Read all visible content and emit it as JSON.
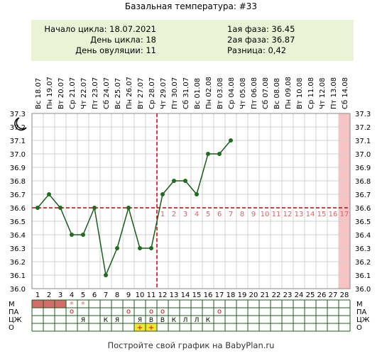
{
  "header": {
    "title": "Базальная температура: #33"
  },
  "info": {
    "cycle_start": "Начало цикла: 18.07.2021",
    "cycle_day": "День цикла: 18",
    "ovulation_day": "День овуляции: 11",
    "phase1": "1ая фаза: 36.45",
    "phase2": "2ая фаза: 36.87",
    "difference": "Разница: 0,42"
  },
  "footer": "Постройте свой график на BabyPlan.ru",
  "colors": {
    "line": "#1a5d1a",
    "point": "#1f6b1f",
    "coverline": "#cc0000",
    "phase2_numbers": "#e06060",
    "menstruation": "#d46a6a",
    "info_bg": "#eaf3d5",
    "last_day_bg": "#f7c3c3",
    "highlight_yellow": "#f4e534",
    "grid": "#d0d0d0"
  },
  "chart_data": {
    "type": "line",
    "days": [
      "1",
      "2",
      "3",
      "4",
      "5",
      "6",
      "7",
      "8",
      "9",
      "10",
      "11",
      "12",
      "13",
      "14",
      "15",
      "16",
      "17",
      "18",
      "19",
      "20",
      "21",
      "22",
      "23",
      "24",
      "25",
      "26",
      "27",
      "28"
    ],
    "dates": [
      "Вс 18.07",
      "Пн 19.07",
      "Вт 20.07",
      "Ср 21.07",
      "Чт 22.07",
      "Пт 23.07",
      "Сб 24.07",
      "Вс 25.07",
      "Пн 26.07",
      "Вт 27.07",
      "Ср 28.07",
      "Чт 29.07",
      "Пт 30.07",
      "Сб 31.07",
      "Вс 01.08",
      "Пн 02.08",
      "Вт 03.08",
      "Ср 04.08",
      "Чт 05.08",
      "Пт 06.08",
      "Сб 07.08",
      "Вс 08.08",
      "Пн 09.08",
      "Вт 10.08",
      "Ср 11.08",
      "Чт 12.08",
      "Пт 13.08",
      "Сб 14.08"
    ],
    "y_ticks": [
      "37.3",
      "37.2",
      "37.1",
      "37.0",
      "36.9",
      "36.8",
      "36.7",
      "36.6",
      "36.5",
      "36.4",
      "36.3",
      "36.2",
      "36.1",
      "36.0"
    ],
    "ylim": [
      36.0,
      37.3
    ],
    "series": [
      {
        "x": [
          1,
          2,
          3,
          4,
          5,
          6,
          7,
          8,
          9,
          10,
          11,
          12,
          13,
          14,
          15,
          16,
          17,
          18
        ],
        "values": [
          36.6,
          36.7,
          36.6,
          36.4,
          36.4,
          36.6,
          36.1,
          36.3,
          36.6,
          36.3,
          36.3,
          36.7,
          36.8,
          36.8,
          36.7,
          37.0,
          37.0,
          37.1
        ]
      }
    ],
    "coverline": 36.6,
    "ovulation_day": 11,
    "phase2_labels": [
      "1",
      "2",
      "3",
      "4",
      "5",
      "6",
      "7",
      "8",
      "9",
      "10",
      "11",
      "12",
      "13",
      "14",
      "15",
      "16",
      "17"
    ],
    "annotations": {
      "moon_icon": "crescent-moon"
    },
    "grid": true,
    "table": {
      "row_labels_left": [
        "М",
        "ПА",
        "ЦЖ",
        "О"
      ],
      "row_labels_right": [
        "М",
        "ПА",
        "ЦЖ",
        "О"
      ],
      "menstruation_days": [
        1,
        2,
        3
      ],
      "star_days": [
        4,
        5
      ],
      "star_symbol": "*",
      "pa_days": [
        4,
        9,
        11,
        12,
        17
      ],
      "pa_symbol": "о",
      "cz": {
        "5": "Я",
        "7": "К",
        "8": "Я",
        "10": "Я",
        "11": "В",
        "12": "В",
        "13": "К",
        "14": "Л",
        "15": "Л",
        "16": "К"
      },
      "o": {
        "10": "+",
        "11": "+"
      },
      "o_highlight_days": [
        10,
        11
      ]
    }
  }
}
